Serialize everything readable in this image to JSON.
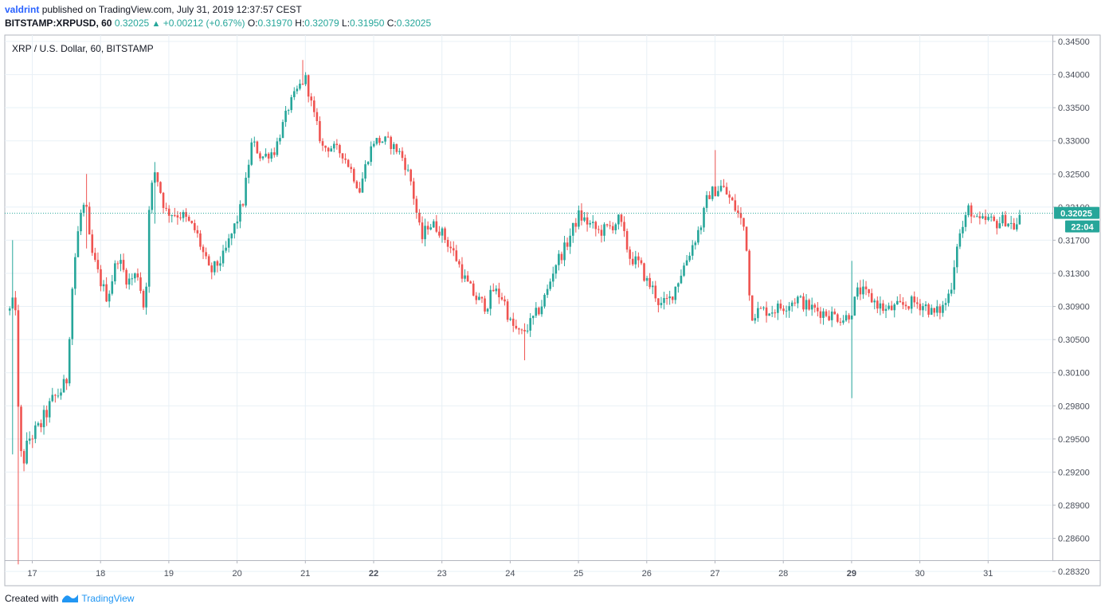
{
  "header": {
    "author": "valdrint",
    "published_text": "published on TradingView.com, July 31, 2019 12:37:57 CEST",
    "symbol": "BITSTAMP:XRPUSD, 60",
    "last": "0.32025",
    "change": "+0.00212 (+0.67%)",
    "o_label": "O:",
    "o_value": "0.31970",
    "h_label": "H:",
    "h_value": "0.32079",
    "l_label": "L:",
    "l_value": "0.31950",
    "c_label": "C:",
    "c_value": "0.32025"
  },
  "footer": {
    "created_with": "Created with",
    "brand": "TradingView"
  },
  "colors": {
    "up": "#26a69a",
    "down": "#ef5350",
    "grid": "#e8f0f6",
    "price_line": "#26a69a"
  },
  "chart_data": {
    "type": "candlestick",
    "title": "XRP / U.S. Dollar, 60, BITSTAMP",
    "current_price": "0.32025",
    "countdown": "22:04",
    "y_ticks": [
      "0.34500",
      "0.34000",
      "0.33500",
      "0.33000",
      "0.32500",
      "0.32100",
      "0.31700",
      "0.31300",
      "0.30900",
      "0.30500",
      "0.30100",
      "0.29800",
      "0.29500",
      "0.29200",
      "0.28900",
      "0.28600",
      "0.28320"
    ],
    "x_ticks": [
      "17",
      "18",
      "19",
      "20",
      "21",
      "22",
      "23",
      "24",
      "25",
      "26",
      "27",
      "28",
      "29",
      "30",
      "31"
    ],
    "bold_x_ticks": [
      "22",
      "29"
    ],
    "x_range": [
      16.6,
      31.75
    ],
    "candles_per_day": 24,
    "control_points": [
      [
        16.67,
        0.3085
      ],
      [
        16.75,
        0.31
      ],
      [
        16.8,
        0.296
      ],
      [
        16.85,
        0.2925
      ],
      [
        16.95,
        0.295
      ],
      [
        17.1,
        0.296
      ],
      [
        17.3,
        0.2985
      ],
      [
        17.5,
        0.3
      ],
      [
        17.6,
        0.313
      ],
      [
        17.7,
        0.32
      ],
      [
        17.78,
        0.3215
      ],
      [
        17.85,
        0.316
      ],
      [
        18.0,
        0.312
      ],
      [
        18.1,
        0.31
      ],
      [
        18.25,
        0.315
      ],
      [
        18.4,
        0.312
      ],
      [
        18.55,
        0.313
      ],
      [
        18.65,
        0.308
      ],
      [
        18.72,
        0.322
      ],
      [
        18.8,
        0.3255
      ],
      [
        18.95,
        0.3205
      ],
      [
        19.2,
        0.32
      ],
      [
        19.4,
        0.318
      ],
      [
        19.6,
        0.313
      ],
      [
        19.8,
        0.315
      ],
      [
        20.0,
        0.3195
      ],
      [
        20.1,
        0.322
      ],
      [
        20.22,
        0.33
      ],
      [
        20.35,
        0.3275
      ],
      [
        20.55,
        0.3285
      ],
      [
        20.75,
        0.335
      ],
      [
        20.9,
        0.338
      ],
      [
        21.0,
        0.3395
      ],
      [
        21.1,
        0.335
      ],
      [
        21.25,
        0.329
      ],
      [
        21.4,
        0.329
      ],
      [
        21.55,
        0.328
      ],
      [
        21.7,
        0.325
      ],
      [
        21.8,
        0.323
      ],
      [
        21.9,
        0.327
      ],
      [
        22.0,
        0.33
      ],
      [
        22.2,
        0.33
      ],
      [
        22.4,
        0.328
      ],
      [
        22.55,
        0.324
      ],
      [
        22.7,
        0.317
      ],
      [
        22.8,
        0.319
      ],
      [
        22.95,
        0.3185
      ],
      [
        23.1,
        0.3165
      ],
      [
        23.2,
        0.315
      ],
      [
        23.35,
        0.312
      ],
      [
        23.5,
        0.31
      ],
      [
        23.65,
        0.309
      ],
      [
        23.75,
        0.311
      ],
      [
        23.9,
        0.31
      ],
      [
        24.0,
        0.307
      ],
      [
        24.15,
        0.3055
      ],
      [
        24.3,
        0.307
      ],
      [
        24.45,
        0.309
      ],
      [
        24.55,
        0.311
      ],
      [
        24.65,
        0.314
      ],
      [
        24.8,
        0.316
      ],
      [
        24.9,
        0.318
      ],
      [
        25.0,
        0.32
      ],
      [
        25.15,
        0.319
      ],
      [
        25.3,
        0.318
      ],
      [
        25.45,
        0.3185
      ],
      [
        25.6,
        0.3195
      ],
      [
        25.75,
        0.315
      ],
      [
        25.9,
        0.314
      ],
      [
        26.0,
        0.312
      ],
      [
        26.1,
        0.311
      ],
      [
        26.2,
        0.309
      ],
      [
        26.35,
        0.31
      ],
      [
        26.5,
        0.313
      ],
      [
        26.65,
        0.316
      ],
      [
        26.8,
        0.319
      ],
      [
        26.9,
        0.3225
      ],
      [
        27.0,
        0.323
      ],
      [
        27.1,
        0.3235
      ],
      [
        27.25,
        0.3215
      ],
      [
        27.35,
        0.32
      ],
      [
        27.45,
        0.318
      ],
      [
        27.52,
        0.308
      ],
      [
        27.65,
        0.3085
      ],
      [
        27.8,
        0.3085
      ],
      [
        28.0,
        0.309
      ],
      [
        28.2,
        0.31
      ],
      [
        28.35,
        0.309
      ],
      [
        28.5,
        0.3085
      ],
      [
        28.7,
        0.308
      ],
      [
        28.9,
        0.3075
      ],
      [
        29.0,
        0.3085
      ],
      [
        29.1,
        0.311
      ],
      [
        29.2,
        0.3105
      ],
      [
        29.35,
        0.3095
      ],
      [
        29.5,
        0.3085
      ],
      [
        29.7,
        0.309
      ],
      [
        29.9,
        0.3095
      ],
      [
        30.1,
        0.309
      ],
      [
        30.2,
        0.308
      ],
      [
        30.35,
        0.309
      ],
      [
        30.45,
        0.311
      ],
      [
        30.55,
        0.317
      ],
      [
        30.65,
        0.319
      ],
      [
        30.72,
        0.321
      ],
      [
        30.85,
        0.319
      ],
      [
        31.0,
        0.3195
      ],
      [
        31.1,
        0.319
      ],
      [
        31.25,
        0.3195
      ],
      [
        31.4,
        0.3185
      ],
      [
        31.5,
        0.32025
      ]
    ],
    "spikes": [
      [
        16.72,
        0.317,
        0.2936
      ],
      [
        16.8,
        0.3053,
        0.2838
      ],
      [
        17.78,
        0.325,
        0.316
      ],
      [
        18.8,
        0.3268,
        0.319
      ],
      [
        20.98,
        0.3422,
        0.3385
      ],
      [
        24.2,
        0.3048,
        0.3025
      ],
      [
        27.02,
        0.3286,
        0.3225
      ],
      [
        29.0,
        0.3145,
        0.2987
      ]
    ]
  }
}
